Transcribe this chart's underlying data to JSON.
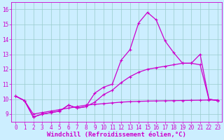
{
  "xlabel": "Windchill (Refroidissement éolien,°C)",
  "bg_color": "#cceeff",
  "grid_color": "#99cccc",
  "line_color": "#cc00cc",
  "xlim": [
    -0.5,
    23.5
  ],
  "ylim": [
    8.5,
    16.5
  ],
  "yticks": [
    9,
    10,
    11,
    12,
    13,
    14,
    15,
    16
  ],
  "xticks": [
    0,
    1,
    2,
    3,
    4,
    5,
    6,
    7,
    8,
    9,
    10,
    11,
    12,
    13,
    14,
    15,
    16,
    17,
    18,
    19,
    20,
    21,
    22,
    23
  ],
  "line1_x": [
    0,
    1,
    2,
    3,
    4,
    5,
    6,
    7,
    8,
    9,
    10,
    11,
    12,
    13,
    14,
    15,
    16,
    17,
    18,
    19,
    20,
    21,
    22,
    23
  ],
  "line1_y": [
    10.2,
    9.9,
    8.8,
    9.0,
    9.1,
    9.2,
    9.6,
    9.4,
    9.5,
    10.4,
    10.8,
    11.0,
    12.6,
    13.3,
    15.1,
    15.8,
    15.3,
    13.9,
    13.1,
    12.4,
    12.4,
    13.0,
    10.0,
    9.9
  ],
  "line2_x": [
    0,
    1,
    2,
    3,
    4,
    5,
    6,
    7,
    8,
    9,
    10,
    11,
    12,
    13,
    14,
    15,
    16,
    17,
    18,
    19,
    20,
    21,
    22,
    23
  ],
  "line2_y": [
    10.2,
    9.9,
    8.8,
    9.0,
    9.1,
    9.2,
    9.6,
    9.4,
    9.5,
    9.8,
    10.3,
    10.6,
    11.1,
    11.5,
    11.8,
    12.0,
    12.1,
    12.2,
    12.3,
    12.4,
    12.4,
    12.3,
    10.0,
    9.9
  ],
  "line3_x": [
    0,
    1,
    2,
    3,
    4,
    5,
    6,
    7,
    8,
    9,
    10,
    11,
    12,
    13,
    14,
    15,
    16,
    17,
    18,
    19,
    20,
    21,
    22,
    23
  ],
  "line3_y": [
    10.2,
    9.9,
    9.0,
    9.1,
    9.2,
    9.3,
    9.4,
    9.5,
    9.6,
    9.65,
    9.7,
    9.75,
    9.8,
    9.83,
    9.85,
    9.87,
    9.88,
    9.89,
    9.9,
    9.91,
    9.92,
    9.93,
    9.94,
    9.95
  ],
  "marker": "+",
  "markersize": 3,
  "linewidth": 0.9,
  "tick_fontsize": 5.5,
  "xlabel_fontsize": 6.5
}
